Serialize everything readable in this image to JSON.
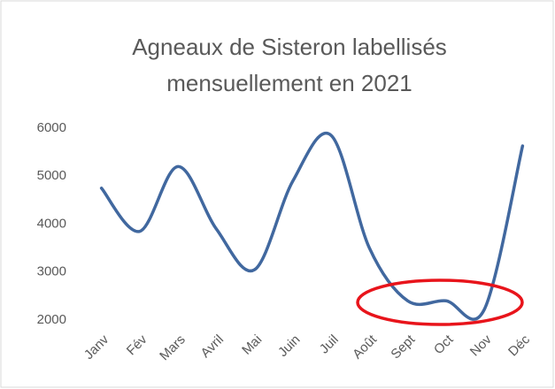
{
  "chart_data": {
    "type": "line",
    "title": [
      "Agneaux de Sisteron labellisés",
      "mensuellement  en 2021"
    ],
    "categories": [
      "Janv",
      "Fév",
      "Mars",
      "Avril",
      "Mai",
      "Juin",
      "Juil",
      "Août",
      "Sept",
      "Oct",
      "Nov",
      "Déc"
    ],
    "values": [
      4750,
      3850,
      5200,
      3900,
      3050,
      4900,
      5850,
      3500,
      2400,
      2400,
      2220,
      5630
    ],
    "color": "#41689f",
    "ylim": [
      2000,
      6000
    ],
    "yticks": [
      2000,
      3000,
      4000,
      5000,
      6000
    ],
    "grid": false
  }
}
